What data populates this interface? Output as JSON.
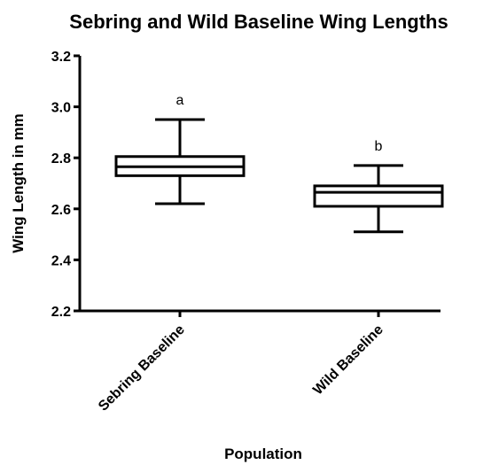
{
  "chart_data": {
    "type": "box",
    "title": "Sebring and Wild Baseline Wing Lengths",
    "xlabel": "Population",
    "ylabel": "Wing Length in mm",
    "ylim": [
      2.2,
      3.2
    ],
    "yticks": [
      "2.2",
      "2.4",
      "2.6",
      "2.8",
      "3.0",
      "3.2"
    ],
    "categories": [
      "Sebring Baseline",
      "Wild Baseline"
    ],
    "boxes": [
      {
        "min": 2.62,
        "q1": 2.73,
        "median": 2.765,
        "q3": 2.805,
        "max": 2.95
      },
      {
        "min": 2.51,
        "q1": 2.61,
        "median": 2.665,
        "q3": 2.69,
        "max": 2.77
      }
    ],
    "annotations": [
      "a",
      "b"
    ],
    "grid": false,
    "legend": "none"
  }
}
